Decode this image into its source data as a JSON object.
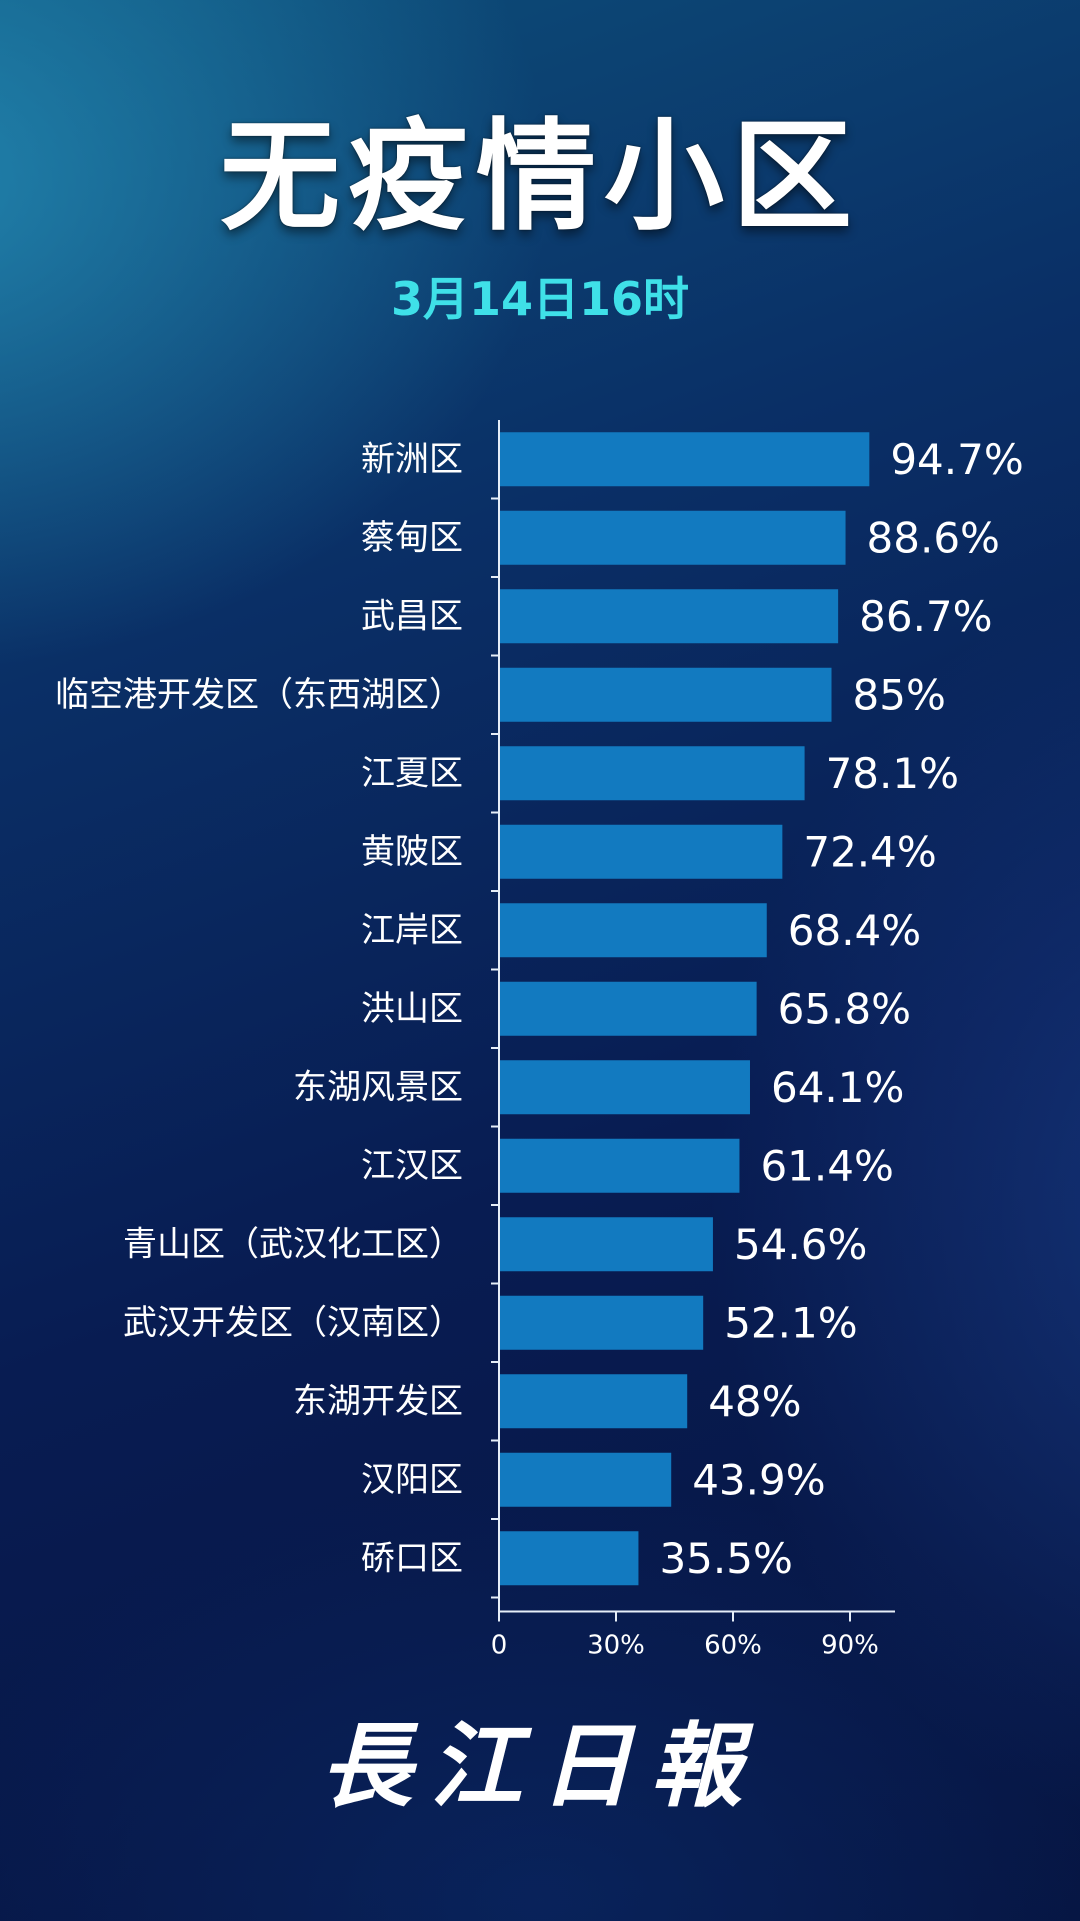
{
  "title": "无疫情小区",
  "subtitle": "3月14日16时",
  "brand": "長江日報",
  "colors": {
    "bar": "#127ac0",
    "text": "#ffffff",
    "subtitle": "#3fe0e8",
    "axis": "#e6eef8"
  },
  "chart_data": {
    "type": "bar",
    "orientation": "horizontal",
    "categories": [
      "新洲区",
      "蔡甸区",
      "武昌区",
      "临空港开发区（东西湖区）",
      "江夏区",
      "黄陂区",
      "江岸区",
      "洪山区",
      "东湖风景区",
      "江汉区",
      "青山区（武汉化工区）",
      "武汉开发区（汉南区）",
      "东湖开发区",
      "汉阳区",
      "硚口区"
    ],
    "values": [
      94.7,
      88.6,
      86.7,
      85,
      78.1,
      72.4,
      68.4,
      65.8,
      64.1,
      61.4,
      54.6,
      52.1,
      48,
      43.9,
      35.5
    ],
    "value_labels": [
      "94.7%",
      "88.6%",
      "86.7%",
      "85%",
      "78.1%",
      "72.4%",
      "68.4%",
      "65.8%",
      "64.1%",
      "61.4%",
      "54.6%",
      "52.1%",
      "48%",
      "43.9%",
      "35.5%"
    ],
    "xlim": [
      0,
      97
    ],
    "xticks": [
      0,
      30,
      60,
      90
    ],
    "xtick_labels": [
      "0",
      "30%",
      "60%",
      "90%"
    ],
    "title": "无疫情小区",
    "subtitle": "3月14日16时",
    "grid": false,
    "legend": "none"
  }
}
